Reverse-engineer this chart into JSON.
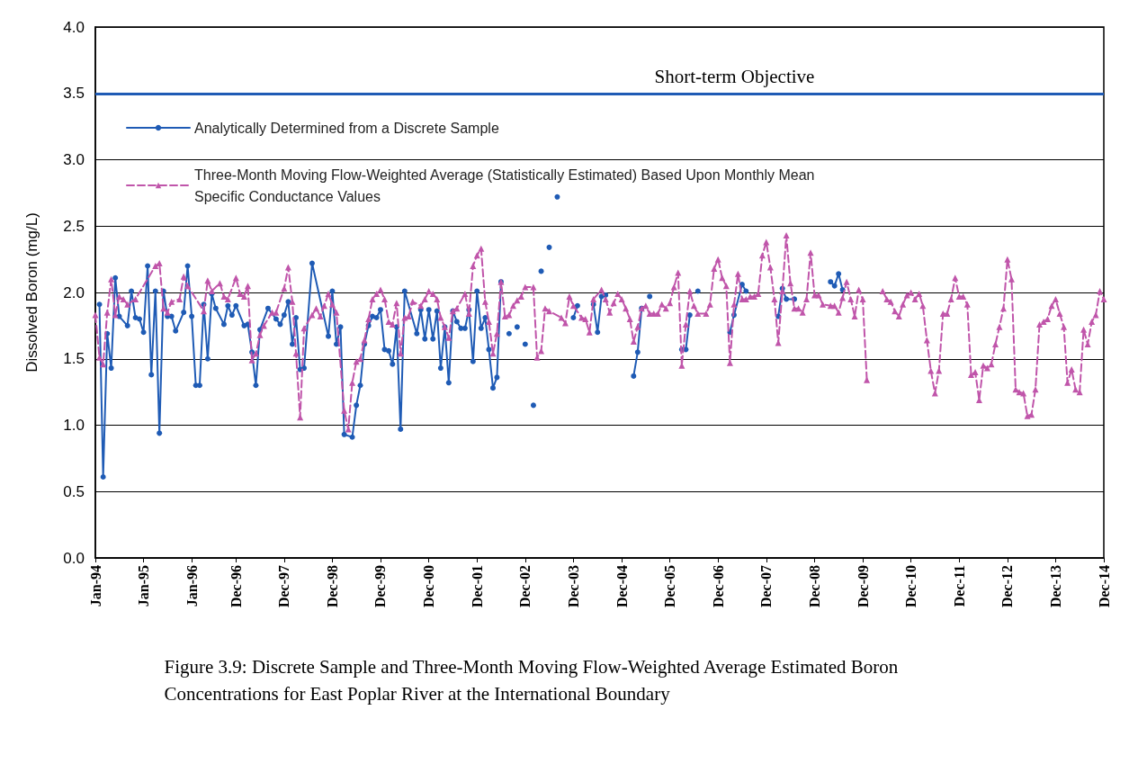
{
  "chart_data": {
    "type": "line",
    "title": "Figure 3.9: Discrete Sample and Three-Month Moving Flow-Weighted Average Estimated Boron Concentrations for East Poplar River at the International Boundary",
    "ylabel": "Dissolved Boron (mg/L)",
    "xlim": [
      "1994-01",
      "2014-12"
    ],
    "xticks": [
      {
        "value": "1994-01",
        "label": "Jan-94"
      },
      {
        "value": "1995-01",
        "label": "Jan-95"
      },
      {
        "value": "1996-01",
        "label": "Jan-96"
      },
      {
        "value": "1996-12",
        "label": "Dec-96"
      },
      {
        "value": "1997-12",
        "label": "Dec-97"
      },
      {
        "value": "1998-12",
        "label": "Dec-98"
      },
      {
        "value": "1999-12",
        "label": "Dec-99"
      },
      {
        "value": "2000-12",
        "label": "Dec-00"
      },
      {
        "value": "2001-12",
        "label": "Dec-01"
      },
      {
        "value": "2002-12",
        "label": "Dec-02"
      },
      {
        "value": "2003-12",
        "label": "Dec-03"
      },
      {
        "value": "2004-12",
        "label": "Dec-04"
      },
      {
        "value": "2005-12",
        "label": "Dec-05"
      },
      {
        "value": "2006-12",
        "label": "Dec-06"
      },
      {
        "value": "2007-12",
        "label": "Dec-07"
      },
      {
        "value": "2008-12",
        "label": "Dec-08"
      },
      {
        "value": "2009-12",
        "label": "Dec-09"
      },
      {
        "value": "2010-12",
        "label": "Dec-10"
      },
      {
        "value": "2011-12",
        "label": "Dec-11"
      },
      {
        "value": "2012-12",
        "label": "Dec-12"
      },
      {
        "value": "2013-12",
        "label": "Dec-13"
      },
      {
        "value": "2014-12",
        "label": "Dec-14"
      }
    ],
    "ylim": [
      0,
      4
    ],
    "yticks": [
      {
        "value": 0,
        "label": "0.0"
      },
      {
        "value": 0.5,
        "label": "0.5"
      },
      {
        "value": 1,
        "label": "1.0"
      },
      {
        "value": 1.5,
        "label": "1.5"
      },
      {
        "value": 2,
        "label": "2.0"
      },
      {
        "value": 2.5,
        "label": "2.5"
      },
      {
        "value": 3,
        "label": "3.0"
      },
      {
        "value": 3.5,
        "label": "3.5"
      },
      {
        "value": 4,
        "label": "4.0"
      }
    ],
    "grid": "y",
    "legend": "top left",
    "ref_lines": [
      {
        "axis": "y",
        "value": 3.5,
        "label": "Short-term Objective",
        "color": "#1f5bb5"
      }
    ],
    "series": [
      {
        "name": "Analytically Determined from a Discrete Sample",
        "color": "#1f5bb5",
        "marker": "circle",
        "line_style": "solid",
        "x": [
          "1994-02",
          "1994-03",
          "1994-04",
          "1994-05",
          "1994-06",
          "1994-07",
          "1994-09",
          "1994-10",
          "1994-11",
          "1994-12",
          "1995-01",
          "1995-02",
          "1995-03",
          "1995-04",
          "1995-05",
          "1995-06",
          "1995-07",
          "1995-08",
          "1995-09",
          "1995-11",
          "1995-12",
          "1996-01",
          "1996-02",
          "1996-03",
          "1996-04",
          "1996-05",
          "1996-06",
          "1996-07",
          "1996-09",
          "1996-10",
          "1996-11",
          "1996-12",
          "1997-02",
          "1997-03",
          "1997-04",
          "1997-05",
          "1997-06",
          "1997-08",
          "1997-10",
          "1997-11",
          "1997-12",
          "1998-01",
          "1998-02",
          "1998-03",
          "1998-04",
          "1998-05",
          "1998-07",
          "1998-11",
          "1998-12",
          "1999-01",
          "1999-02",
          "1999-03",
          "1999-05",
          "1999-06",
          "1999-07",
          "1999-08",
          "1999-09",
          "1999-10",
          "1999-11",
          "1999-12",
          "2000-01",
          "2000-02",
          "2000-03",
          "2000-04",
          "2000-05",
          "2000-06",
          "2000-09",
          "2000-10",
          "2000-11",
          "2000-12",
          "2001-01",
          "2001-02",
          "2001-03",
          "2001-04",
          "2001-05",
          "2001-06",
          "2001-07",
          "2001-08",
          "2001-09",
          "2001-10",
          "2001-11",
          "2001-12",
          "2002-01",
          "2002-02",
          "2002-03",
          "2002-04",
          "2002-05",
          "2002-06",
          "2002-07",
          "2002-08",
          "2002-09",
          "2002-10",
          "2002-11",
          "2002-12",
          "2003-01",
          "2003-02",
          "2003-03",
          "2003-04",
          "2003-05",
          "2003-06",
          "2003-07",
          "2003-08",
          "2003-09",
          "2003-12",
          "2004-01",
          "2004-02",
          "2004-05",
          "2004-06",
          "2004-07",
          "2004-08",
          "2004-09",
          "2005-03",
          "2005-04",
          "2005-05",
          "2005-06",
          "2005-07",
          "2005-08",
          "2006-03",
          "2006-04",
          "2006-05",
          "2006-06",
          "2006-07",
          "2006-08",
          "2007-03",
          "2007-04",
          "2007-06",
          "2007-07",
          "2007-08",
          "2008-03",
          "2008-04",
          "2008-05",
          "2008-07",
          "2008-08",
          "2009-04",
          "2009-05",
          "2009-06",
          "2009-07"
        ],
        "values": [
          1.91,
          0.61,
          1.69,
          1.43,
          2.11,
          1.82,
          1.75,
          2.01,
          1.81,
          1.8,
          1.7,
          2.2,
          1.38,
          2.01,
          0.94,
          2.01,
          1.82,
          1.82,
          1.71,
          1.85,
          2.2,
          1.82,
          1.3,
          1.3,
          1.91,
          1.5,
          1.99,
          1.88,
          1.76,
          1.9,
          1.83,
          1.9,
          1.75,
          1.76,
          1.55,
          1.3,
          1.72,
          1.88,
          1.8,
          1.76,
          1.83,
          1.93,
          1.61,
          1.81,
          1.42,
          1.43,
          2.22,
          1.67,
          2.01,
          1.61,
          1.74,
          0.93,
          0.91,
          1.15,
          1.3,
          1.61,
          1.75,
          1.82,
          1.81,
          1.87,
          1.57,
          1.56,
          1.46,
          1.74,
          0.97,
          2.01,
          1.69,
          1.87,
          1.65,
          1.87,
          1.65,
          1.86,
          1.43,
          1.74,
          1.32,
          1.86,
          1.78,
          1.73,
          1.73,
          1.87,
          1.48,
          2.01,
          1.73,
          1.81,
          1.57,
          1.28,
          1.36,
          2.08,
          null,
          1.69,
          null,
          1.74,
          null,
          1.61,
          null,
          1.15,
          null,
          2.16,
          null,
          2.34,
          null,
          2.72,
          null,
          1.81,
          1.9,
          null,
          1.91,
          1.7,
          1.97,
          1.98,
          null,
          1.37,
          1.55,
          1.88,
          null,
          1.97,
          null,
          1.57,
          1.57,
          1.83,
          null,
          2.01,
          null,
          1.7,
          1.83,
          2.06,
          2.01,
          null,
          1.82,
          2.03,
          1.95,
          1.95,
          null,
          2.08,
          2.05,
          2.14,
          2.02
        ]
      },
      {
        "name": "Three-Month Moving Flow-Weighted Average (Statistically Estimated) Based Upon Monthly Mean Specific Conductance Values",
        "color": "#c055aa",
        "marker": "triangle",
        "line_style": "dashed",
        "x": [
          "1994-01",
          "1994-02",
          "1994-03",
          "1994-04",
          "1994-05",
          "1994-06",
          "1994-07",
          "1994-08",
          "1994-09",
          "1994-11",
          "1995-04",
          "1995-05",
          "1995-06",
          "1995-07",
          "1995-08",
          "1995-10",
          "1995-11",
          "1995-12",
          "1996-04",
          "1996-05",
          "1996-06",
          "1996-08",
          "1996-09",
          "1996-10",
          "1996-12",
          "1997-01",
          "1997-02",
          "1997-03",
          "1997-04",
          "1997-05",
          "1997-06",
          "1997-07",
          "1997-09",
          "1997-10",
          "1997-12",
          "1998-01",
          "1998-02",
          "1998-03",
          "1998-04",
          "1998-05",
          "1998-07",
          "1998-08",
          "1998-09",
          "1998-10",
          "1998-11",
          "1998-12",
          "1999-01",
          "1999-03",
          "1999-04",
          "1999-05",
          "1999-06",
          "1999-07",
          "1999-08",
          "1999-09",
          "1999-10",
          "1999-11",
          "1999-12",
          "2000-01",
          "2000-02",
          "2000-03",
          "2000-04",
          "2000-05",
          "2000-06",
          "2000-07",
          "2000-08",
          "2000-10",
          "2000-11",
          "2000-12",
          "2001-01",
          "2001-02",
          "2001-03",
          "2001-04",
          "2001-05",
          "2001-06",
          "2001-07",
          "2001-09",
          "2001-10",
          "2001-11",
          "2001-12",
          "2002-01",
          "2002-02",
          "2002-03",
          "2002-04",
          "2002-05",
          "2002-06",
          "2002-07",
          "2002-08",
          "2002-09",
          "2002-10",
          "2002-11",
          "2002-12",
          "2003-02",
          "2003-03",
          "2003-04",
          "2003-05",
          "2003-06",
          "2003-09",
          "2003-10",
          "2003-11",
          "2003-12",
          "2004-02",
          "2004-03",
          "2004-04",
          "2004-05",
          "2004-07",
          "2004-08",
          "2004-09",
          "2004-10",
          "2004-11",
          "2004-12",
          "2005-01",
          "2005-02",
          "2005-03",
          "2005-04",
          "2005-05",
          "2005-06",
          "2005-07",
          "2005-08",
          "2005-09",
          "2005-10",
          "2005-11",
          "2005-12",
          "2006-01",
          "2006-02",
          "2006-03",
          "2006-04",
          "2006-05",
          "2006-06",
          "2006-07",
          "2006-09",
          "2006-10",
          "2006-11",
          "2006-12",
          "2007-01",
          "2007-02",
          "2007-03",
          "2007-04",
          "2007-05",
          "2007-06",
          "2007-07",
          "2007-08",
          "2007-09",
          "2007-10",
          "2007-11",
          "2007-12",
          "2008-01",
          "2008-02",
          "2008-03",
          "2008-04",
          "2008-05",
          "2008-06",
          "2008-07",
          "2008-08",
          "2008-09",
          "2008-10",
          "2008-11",
          "2008-12",
          "2009-01",
          "2009-02",
          "2009-04",
          "2009-05",
          "2009-06",
          "2009-07",
          "2009-08",
          "2009-09",
          "2009-10",
          "2009-11",
          "2009-12",
          "2010-01",
          "2010-02",
          "2010-05",
          "2010-06",
          "2010-07",
          "2010-08",
          "2010-09",
          "2010-10",
          "2010-11",
          "2010-12",
          "2011-01",
          "2011-02",
          "2011-03",
          "2011-04",
          "2011-05",
          "2011-06",
          "2011-07",
          "2011-08",
          "2011-09",
          "2011-10",
          "2011-11",
          "2011-12",
          "2012-01",
          "2012-02",
          "2012-03",
          "2012-04",
          "2012-05",
          "2012-06",
          "2012-07",
          "2012-08",
          "2012-09",
          "2012-10",
          "2012-11",
          "2012-12",
          "2013-01",
          "2013-02",
          "2013-03",
          "2013-04",
          "2013-05",
          "2013-06",
          "2013-07",
          "2013-08",
          "2013-09",
          "2013-10",
          "2013-11",
          "2013-12",
          "2014-01",
          "2014-02",
          "2014-03",
          "2014-04",
          "2014-05",
          "2014-06",
          "2014-07",
          "2014-08",
          "2014-09",
          "2014-10",
          "2014-11",
          "2014-12"
        ],
        "values": [
          1.83,
          1.51,
          1.46,
          1.85,
          2.1,
          1.83,
          1.97,
          1.95,
          1.91,
          1.95,
          2.2,
          2.22,
          1.88,
          1.85,
          1.93,
          1.95,
          2.12,
          2.05,
          1.86,
          2.09,
          2.01,
          2.07,
          1.97,
          1.95,
          2.11,
          1.99,
          1.97,
          2.05,
          1.49,
          1.54,
          1.68,
          1.75,
          1.85,
          1.85,
          2.03,
          2.19,
          1.93,
          1.54,
          1.06,
          1.73,
          1.83,
          1.88,
          1.82,
          1.9,
          1.99,
          1.91,
          1.85,
          1.11,
          0.97,
          1.32,
          1.48,
          1.5,
          1.64,
          1.8,
          1.95,
          1.99,
          2.02,
          1.95,
          1.78,
          1.76,
          1.92,
          1.54,
          1.81,
          1.82,
          1.93,
          1.9,
          1.95,
          2.01,
          1.99,
          1.95,
          1.81,
          1.74,
          1.66,
          1.86,
          1.88,
          1.99,
          1.84,
          2.2,
          2.28,
          2.33,
          1.93,
          1.78,
          1.54,
          1.69,
          2.08,
          1.82,
          1.83,
          1.9,
          1.94,
          1.97,
          2.04,
          2.04,
          1.51,
          1.56,
          1.88,
          1.86,
          1.81,
          1.77,
          1.97,
          1.9,
          1.81,
          1.8,
          1.7,
          1.95,
          2.02,
          1.95,
          1.85,
          1.92,
          1.99,
          1.95,
          1.88,
          1.8,
          1.63,
          1.74,
          1.88,
          1.9,
          1.84,
          1.84,
          1.84,
          1.91,
          1.88,
          1.92,
          2.04,
          2.15,
          1.45,
          1.76,
          2.01,
          1.9,
          1.84,
          1.84,
          1.91,
          2.18,
          2.25,
          2.11,
          2.05,
          1.47,
          1.91,
          2.14,
          1.95,
          1.95,
          1.97,
          1.97,
          1.99,
          2.28,
          2.38,
          2.19,
          1.95,
          1.62,
          2.01,
          2.43,
          2.07,
          1.88,
          1.88,
          1.85,
          1.95,
          2.3,
          1.98,
          1.98,
          1.91,
          1.9,
          1.9,
          1.85,
          1.96,
          2.08,
          1.95,
          1.82,
          2.02,
          1.95,
          1.34,
          null,
          2.01,
          1.95,
          1.93,
          1.86,
          1.82,
          1.91,
          1.98,
          2.0,
          1.95,
          1.99,
          1.9,
          1.64,
          1.41,
          1.24,
          1.41,
          1.84,
          1.84,
          1.95,
          2.11,
          1.97,
          1.97,
          1.91,
          1.38,
          1.4,
          1.19,
          1.45,
          1.43,
          1.46,
          1.61,
          1.74,
          1.88,
          2.25,
          2.1,
          1.27,
          1.25,
          1.24,
          1.07,
          1.08,
          1.27,
          1.76,
          1.78,
          1.8,
          1.9,
          1.95,
          1.84,
          1.74,
          1.32,
          1.42,
          1.27,
          1.25,
          1.72,
          1.61,
          1.78,
          1.83,
          2.01,
          1.95
        ]
      }
    ]
  }
}
